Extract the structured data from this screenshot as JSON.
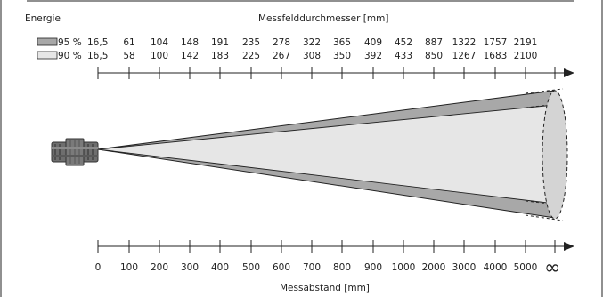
{
  "energy_label": "Energie",
  "spot_title": "Messfelddurchmesser [mm]",
  "distance_title": "Messabstand [mm]",
  "legend": [
    {
      "label": "95 %",
      "color": "#a8a8a8"
    },
    {
      "label": "90 %",
      "color": "#e6e6e6"
    }
  ],
  "row95": [
    "16,5",
    "61",
    "104",
    "148",
    "191",
    "235",
    "278",
    "322",
    "365",
    "409",
    "452",
    "887",
    "1322",
    "1757",
    "2191"
  ],
  "row90": [
    "16,5",
    "58",
    "100",
    "142",
    "183",
    "225",
    "267",
    "308",
    "350",
    "392",
    "433",
    "850",
    "1267",
    "1683",
    "2100"
  ],
  "distances": [
    "0",
    "100",
    "200",
    "300",
    "400",
    "500",
    "600",
    "700",
    "800",
    "900",
    "1000",
    "2000",
    "3000",
    "4000",
    "5000"
  ],
  "infinity": "∞",
  "colors": {
    "cone_outer": "#a8a8a8",
    "cone_inner": "#e6e6e6",
    "sensor": "#6e6e6e",
    "line": "#222222"
  }
}
